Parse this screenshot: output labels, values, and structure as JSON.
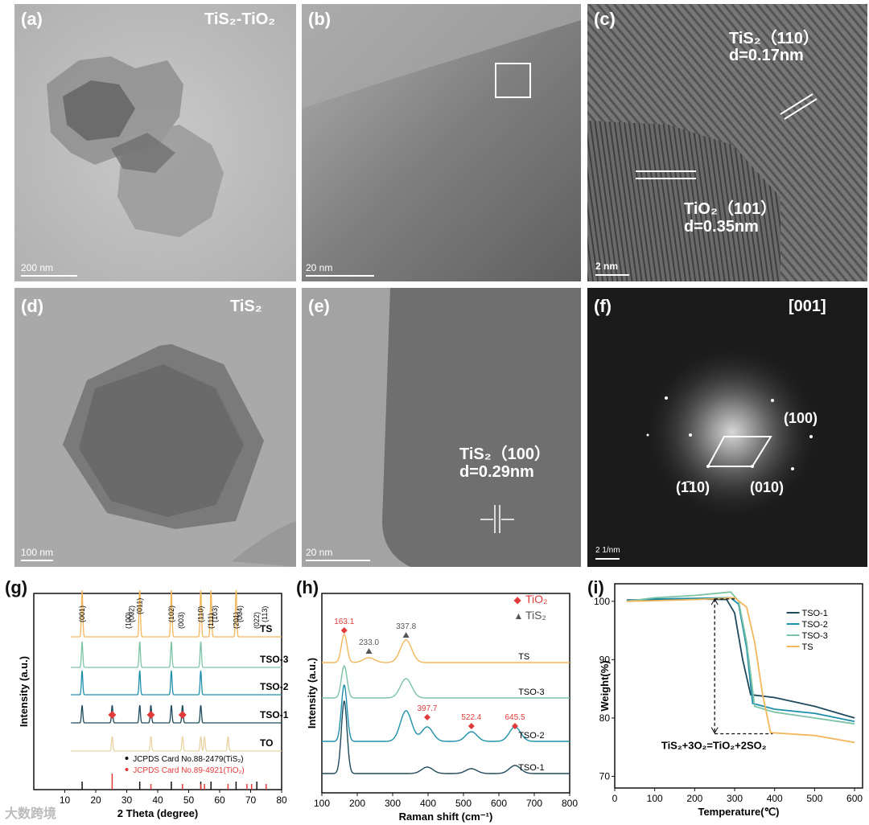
{
  "panels": {
    "a": {
      "label": "(a)",
      "title": "TiS₂-TiO₂",
      "scale": "200 nm"
    },
    "b": {
      "label": "(b)",
      "scale": "20 nm"
    },
    "c": {
      "label": "(c)",
      "scale": "2 nm",
      "ann1_line1": "TiS₂（110）",
      "ann1_line2": "d=0.17nm",
      "ann2_line1": "TiO₂（101）",
      "ann2_line2": "d=0.35nm"
    },
    "d": {
      "label": "(d)",
      "title": "TiS₂",
      "scale": "100 nm"
    },
    "e": {
      "label": "(e)",
      "scale": "20 nm",
      "ann_line1": "TiS₂（100）",
      "ann_line2": "d=0.29nm"
    },
    "f": {
      "label": "(f)",
      "title": "[001]",
      "scale": "2 1/nm",
      "spot1": "(100)",
      "spot2": "(1̄10)",
      "spot3": "(010)"
    }
  },
  "watermark": "大数跨境",
  "colors": {
    "TS": "#f2b65b",
    "TSO3": "#7cc3a5",
    "TSO2": "#1e8faa",
    "TSO1": "#1d4a5b",
    "TO": "#e9d3a1",
    "red": "#e03a3a",
    "grey": "#555555"
  },
  "chart_data": [
    {
      "panel": "(g)",
      "type": "line",
      "xlabel": "2 Theta (degree)",
      "ylabel": "Intensity (a.u.)",
      "xlim": [
        0,
        80
      ],
      "xticks": [
        10,
        20,
        30,
        40,
        50,
        60,
        70,
        80
      ],
      "series": [
        {
          "name": "TS",
          "peaks": [
            15.6,
            34.2,
            44.4,
            53.9,
            57.2,
            65.3
          ]
        },
        {
          "name": "TSO-3",
          "peaks": [
            15.6,
            34.2,
            44.4,
            53.9
          ]
        },
        {
          "name": "TSO-2",
          "peaks": [
            15.6,
            34.2,
            44.4,
            53.9
          ]
        },
        {
          "name": "TSO-1",
          "peaks": [
            15.6,
            25.3,
            34.2,
            37.8,
            44.4,
            48.0,
            53.9
          ]
        },
        {
          "name": "TO",
          "peaks": [
            25.3,
            37.8,
            48.0,
            53.9,
            55.1,
            62.7
          ]
        }
      ],
      "hkl_labels": [
        {
          "text": "(001)",
          "x": 15.6
        },
        {
          "text": "(100)",
          "x": 30.5
        },
        {
          "text": "(002)",
          "x": 31.5
        },
        {
          "text": "(011)",
          "x": 34.2
        },
        {
          "text": "(102)",
          "x": 44.4
        },
        {
          "text": "(003)",
          "x": 47.5
        },
        {
          "text": "(110)",
          "x": 53.9
        },
        {
          "text": "(111)",
          "x": 57.2
        },
        {
          "text": "(103)",
          "x": 58.5
        },
        {
          "text": "(201)",
          "x": 65.3
        },
        {
          "text": "(004)",
          "x": 66.5
        },
        {
          "text": "(022)",
          "x": 72.0
        },
        {
          "text": "(113)",
          "x": 74.5
        }
      ],
      "tio2_markers": [
        25.3,
        37.8,
        48.0
      ],
      "ref_legend": [
        "JCPDS Card No.88-2479(TiS₂)",
        "JCPDS Card No.89-4921(TiO₂)"
      ],
      "ref_TiS2": [
        15.6,
        34.2,
        44.4,
        53.9,
        57.2,
        65.3,
        72.0
      ],
      "ref_TiO2": [
        25.3,
        37.8,
        48.0,
        53.9,
        55.1,
        62.7,
        68.8,
        70.3,
        75.0
      ]
    },
    {
      "panel": "(h)",
      "type": "line",
      "xlabel": "Raman shift (cm⁻¹)",
      "ylabel": "Intensity (a.u.)",
      "xlim": [
        100,
        800
      ],
      "xticks": [
        100,
        200,
        300,
        400,
        500,
        600,
        700,
        800
      ],
      "legend": [
        {
          "symbol": "◆",
          "text": "TiO₂"
        },
        {
          "symbol": "▲",
          "text": "TiS₂"
        }
      ],
      "series": [
        {
          "name": "TS",
          "peaks": [
            163.1,
            233.0,
            337.8
          ]
        },
        {
          "name": "TSO-3",
          "peaks": [
            163.1,
            337.8
          ]
        },
        {
          "name": "TSO-2",
          "peaks": [
            163.1,
            337.8,
            397.7,
            522.4,
            645.5
          ]
        },
        {
          "name": "TSO-1",
          "peaks": [
            163.1,
            397.7,
            522.4,
            645.5
          ]
        }
      ],
      "peak_labels": [
        {
          "text": "163.1",
          "x": 163.1,
          "phase": "TiO2"
        },
        {
          "text": "233.0",
          "x": 233.0,
          "phase": "TiS2"
        },
        {
          "text": "337.8",
          "x": 337.8,
          "phase": "TiS2"
        },
        {
          "text": "397.7",
          "x": 397.7,
          "phase": "TiO2"
        },
        {
          "text": "522.4",
          "x": 522.4,
          "phase": "TiO2"
        },
        {
          "text": "645.5",
          "x": 645.5,
          "phase": "TiO2"
        }
      ]
    },
    {
      "panel": "(i)",
      "type": "line",
      "xlabel": "Temperature(℃)",
      "ylabel": "Weight(%)",
      "xlim": [
        0,
        620
      ],
      "ylim": [
        68,
        103
      ],
      "xticks": [
        0,
        100,
        200,
        300,
        400,
        500,
        600
      ],
      "yticks": [
        70,
        80,
        90,
        100
      ],
      "equation": "TiS₂+3O₂=TiO₂+2SO₂",
      "series": [
        {
          "name": "TSO-1",
          "x": [
            30,
            100,
            200,
            280,
            300,
            320,
            340,
            400,
            500,
            600
          ],
          "y": [
            100.2,
            100.3,
            100.4,
            100.3,
            98,
            90,
            84,
            83.5,
            82,
            80
          ]
        },
        {
          "name": "TSO-2",
          "x": [
            30,
            100,
            200,
            290,
            310,
            330,
            345,
            400,
            500,
            600
          ],
          "y": [
            100.1,
            100.4,
            100.5,
            100.6,
            99.5,
            92,
            82.5,
            81.5,
            80.8,
            79.4
          ]
        },
        {
          "name": "TSO-3",
          "x": [
            30,
            100,
            200,
            290,
            310,
            330,
            350,
            400,
            500,
            600
          ],
          "y": [
            100.0,
            100.6,
            101.0,
            101.6,
            100,
            93,
            82,
            81,
            80,
            79
          ]
        },
        {
          "name": "TS",
          "x": [
            30,
            100,
            200,
            300,
            330,
            350,
            370,
            390,
            500,
            600
          ],
          "y": [
            100.0,
            100.1,
            100.3,
            100.6,
            99,
            93,
            84,
            77.5,
            77,
            75.8
          ]
        }
      ]
    }
  ]
}
